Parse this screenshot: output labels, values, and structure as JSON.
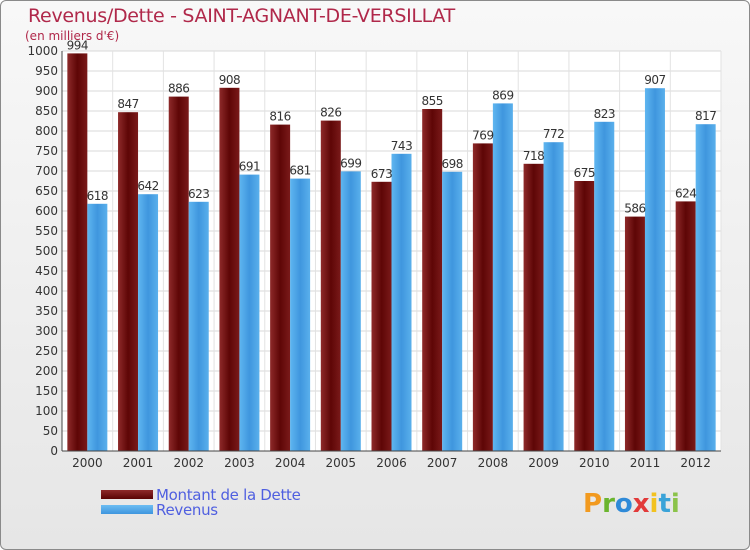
{
  "title": "Revenus/Dette - SAINT-AGNANT-DE-VERSILLAT",
  "subtitle": "(en milliers d'€)",
  "logo": "Proxiti",
  "colors": {
    "dette": "#6e0a0a",
    "revenus": "#4ea8e8",
    "title": "#b0284a",
    "legend_text": "#4f5fe0"
  },
  "chart_data": {
    "type": "bar",
    "categories": [
      "2000",
      "2001",
      "2002",
      "2003",
      "2004",
      "2005",
      "2006",
      "2007",
      "2008",
      "2009",
      "2010",
      "2011",
      "2012"
    ],
    "series": [
      {
        "name": "Montant de la Dette",
        "values": [
          994,
          847,
          886,
          908,
          816,
          826,
          673,
          855,
          769,
          718,
          675,
          586,
          624
        ]
      },
      {
        "name": "Revenus",
        "values": [
          618,
          642,
          623,
          691,
          681,
          699,
          743,
          698,
          869,
          772,
          823,
          907,
          817
        ]
      }
    ],
    "ylim": [
      0,
      1000
    ],
    "yticks": [
      0,
      50,
      100,
      150,
      200,
      250,
      300,
      350,
      400,
      450,
      500,
      550,
      600,
      650,
      700,
      750,
      800,
      850,
      900,
      950,
      1000
    ],
    "grid": true,
    "legend_position": "bottom-left"
  }
}
